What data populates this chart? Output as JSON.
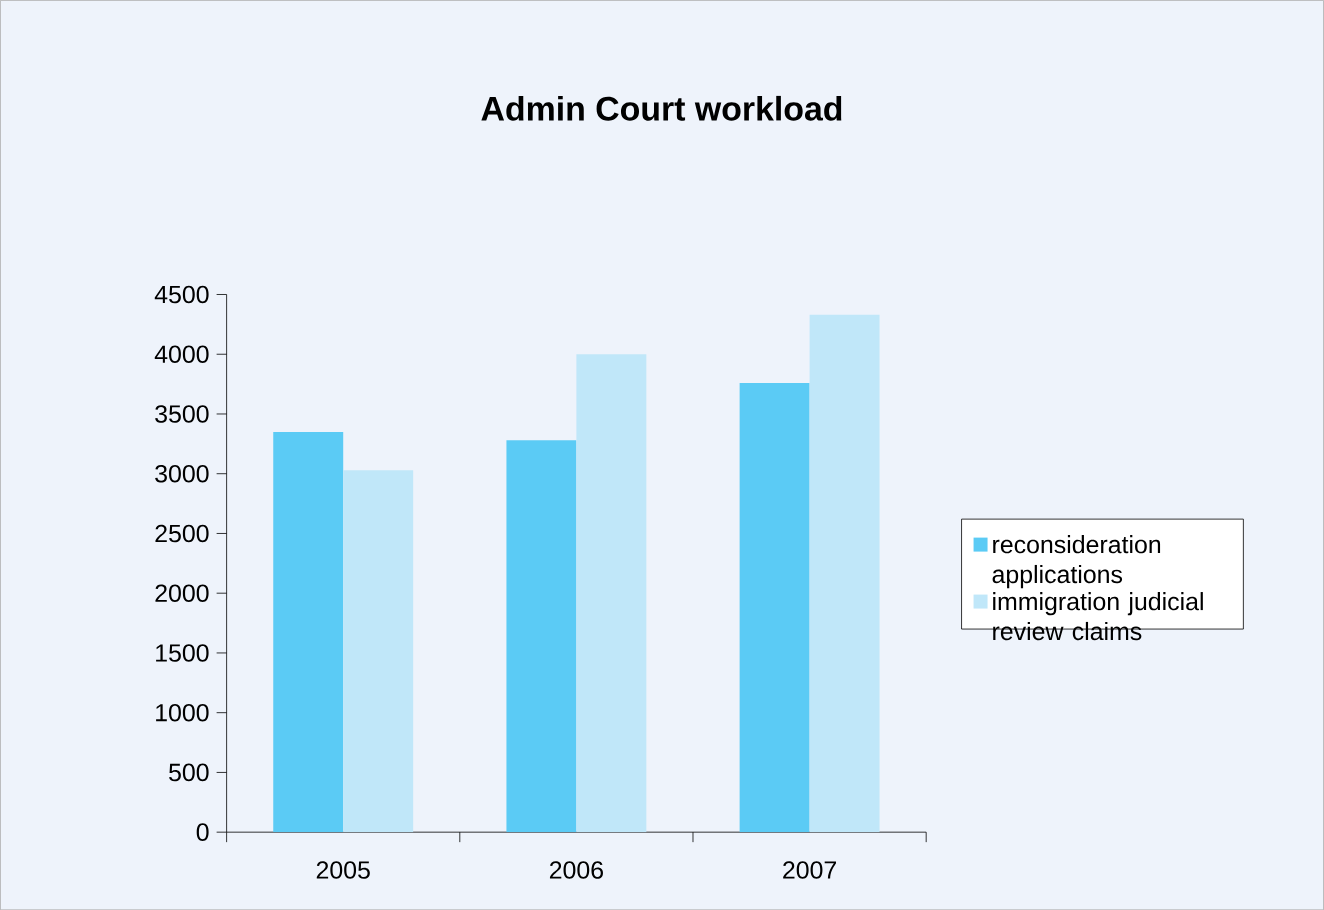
{
  "chart_data": {
    "type": "bar",
    "title": "Admin Court workload",
    "categories": [
      "2005",
      "2006",
      "2007"
    ],
    "series": [
      {
        "name": "reconsideration applications",
        "color": "#5bcbf5",
        "values": [
          3350,
          3280,
          3760
        ]
      },
      {
        "name": "immigration judicial review claims",
        "color": "#c0e7f9",
        "values": [
          3030,
          4000,
          4330
        ]
      }
    ],
    "ylim": [
      0,
      4500
    ],
    "yticks": [
      0,
      500,
      1000,
      1500,
      2000,
      2500,
      3000,
      3500,
      4000,
      4500
    ],
    "grid": false,
    "legend": "right"
  }
}
